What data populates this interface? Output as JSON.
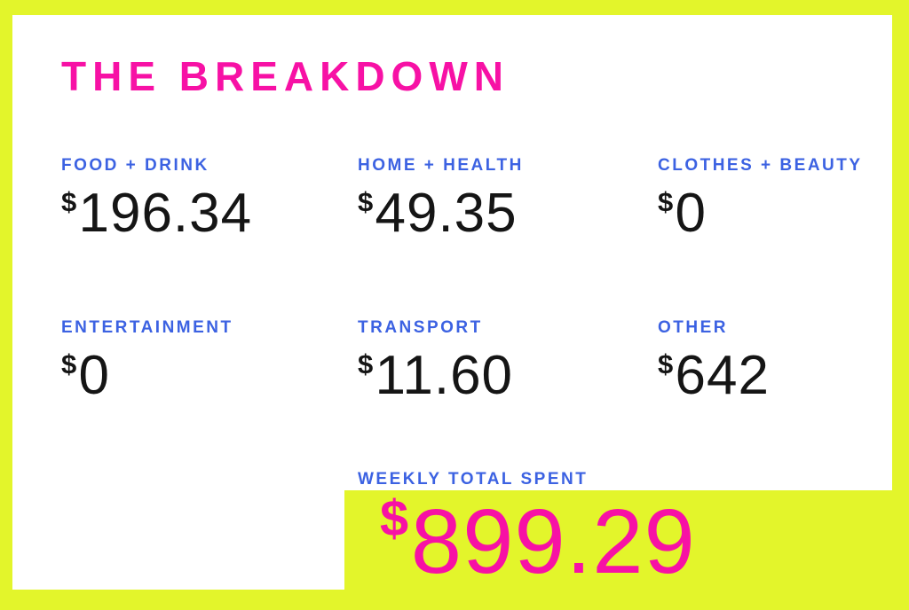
{
  "title": "THE BREAKDOWN",
  "cells": [
    {
      "label": "FOOD + DRINK",
      "currency": "$",
      "amount": "196.34"
    },
    {
      "label": "HOME + HEALTH",
      "currency": "$",
      "amount": "49.35"
    },
    {
      "label": "CLOTHES + BEAUTY",
      "currency": "$",
      "amount": "0"
    },
    {
      "label": "ENTERTAINMENT",
      "currency": "$",
      "amount": "0"
    },
    {
      "label": "TRANSPORT",
      "currency": "$",
      "amount": "11.60"
    },
    {
      "label": "OTHER",
      "currency": "$",
      "amount": "642"
    }
  ],
  "total": {
    "label": "WEEKLY TOTAL SPENT",
    "currency": "$",
    "amount": "899.29"
  },
  "colors": {
    "background_yellow": "#e3f52b",
    "card_white": "#ffffff",
    "accent_pink": "#f711a5",
    "label_blue": "#3c62e2",
    "value_black": "#151515"
  },
  "chart_data": {
    "type": "table",
    "title": "THE BREAKDOWN",
    "categories": [
      "FOOD + DRINK",
      "HOME + HEALTH",
      "CLOTHES + BEAUTY",
      "ENTERTAINMENT",
      "TRANSPORT",
      "OTHER"
    ],
    "values": [
      196.34,
      49.35,
      0,
      0,
      11.6,
      642
    ],
    "currency": "$",
    "total_label": "WEEKLY TOTAL SPENT",
    "total_value": 899.29,
    "legend_position": "none",
    "grid": false
  }
}
